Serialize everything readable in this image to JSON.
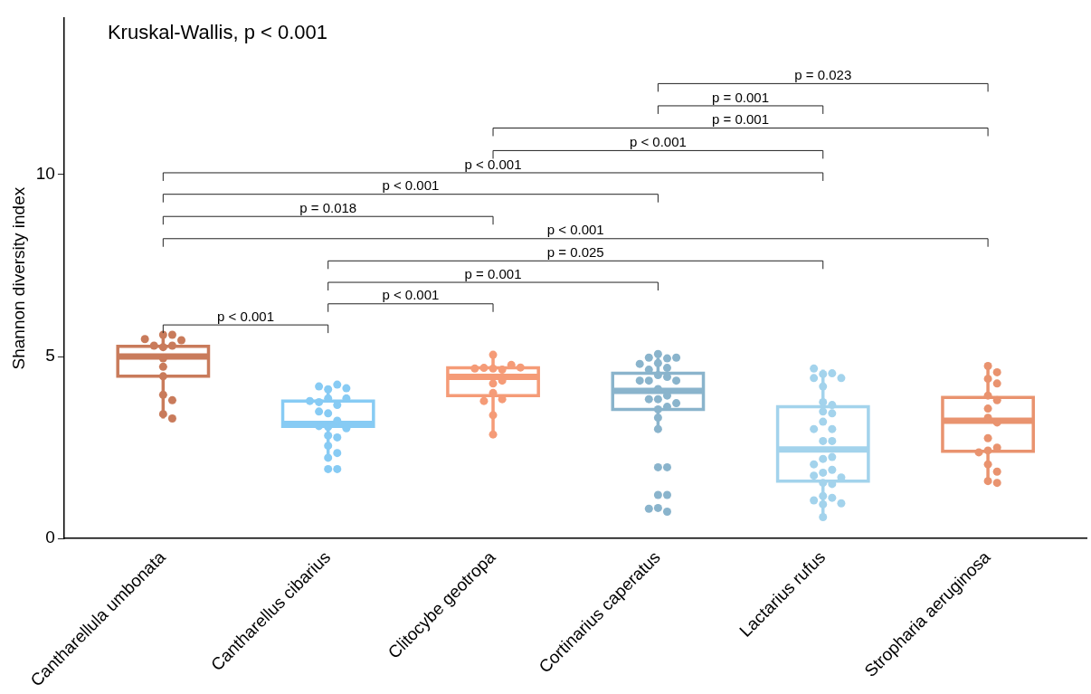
{
  "chart_data": {
    "type": "box",
    "ylabel": "Shannon diversity index",
    "categories": [
      "Cantharellula umbonata",
      "Cantharellus cibarius",
      "Clitocybe geotropa",
      "Cortinarius caperatus",
      "Lactarius rufus",
      "Stropharia aeruginosa"
    ],
    "colors": [
      "#c97b5b",
      "#87cbf4",
      "#f59b77",
      "#8ab4cc",
      "#a3d3ec",
      "#e9936f"
    ],
    "boxes": [
      {
        "low": 3.3,
        "q1": 4.46,
        "median": 5.0,
        "q3": 5.28,
        "high": 5.6
      },
      {
        "low": 2.27,
        "q1": 3.08,
        "median": 3.15,
        "q3": 3.78,
        "high": 4.13
      },
      {
        "low": 2.88,
        "q1": 3.93,
        "median": 4.44,
        "q3": 4.69,
        "high": 5.03
      },
      {
        "low": 3.04,
        "q1": 3.55,
        "median": 4.06,
        "q3": 4.54,
        "high": 4.97
      },
      {
        "low": 0.61,
        "q1": 1.58,
        "median": 2.45,
        "q3": 3.62,
        "high": 4.64
      },
      {
        "low": 1.53,
        "q1": 2.4,
        "median": 3.24,
        "q3": 3.88,
        "high": 4.72
      }
    ],
    "series": [
      {
        "type": "scatter",
        "color": "#c97b5b",
        "x": [
          "Cantharellula umbonata",
          "Cantharellula umbonata",
          "Cantharellula umbonata",
          "Cantharellula umbonata",
          "Cantharellula umbonata",
          "Cantharellula umbonata",
          "Cantharellula umbonata",
          "Cantharellula umbonata",
          "Cantharellula umbonata",
          "Cantharellula umbonata",
          "Cantharellula umbonata",
          "Cantharellula umbonata",
          "Cantharellula umbonata",
          "Cantharellula umbonata"
        ],
        "values": [
          5.6,
          5.6,
          5.26,
          5.3,
          5.3,
          5.45,
          5.48,
          4.95,
          4.72,
          4.46,
          3.95,
          3.8,
          3.42,
          3.3
        ]
      },
      {
        "type": "scatter",
        "color": "#87cbf4",
        "x": [
          "Cantharellus cibarius",
          "Cantharellus cibarius",
          "Cantharellus cibarius",
          "Cantharellus cibarius",
          "Cantharellus cibarius",
          "Cantharellus cibarius",
          "Cantharellus cibarius",
          "Cantharellus cibarius",
          "Cantharellus cibarius",
          "Cantharellus cibarius",
          "Cantharellus cibarius",
          "Cantharellus cibarius",
          "Cantharellus cibarius",
          "Cantharellus cibarius",
          "Cantharellus cibarius",
          "Cantharellus cibarius",
          "Cantharellus cibarius",
          "Cantharellus cibarius",
          "Cantharellus cibarius",
          "Cantharellus cibarius",
          "Cantharellus cibarius",
          "Cantharellus cibarius"
        ],
        "values": [
          4.1,
          4.23,
          4.18,
          4.13,
          3.85,
          3.67,
          3.75,
          3.85,
          3.78,
          3.44,
          3.49,
          3.24,
          3.07,
          3.09,
          3.03,
          2.83,
          2.78,
          2.55,
          2.35,
          2.22,
          1.91,
          1.91
        ]
      },
      {
        "type": "scatter",
        "color": "#f59b77",
        "x": [
          "Clitocybe geotropa",
          "Clitocybe geotropa",
          "Clitocybe geotropa",
          "Clitocybe geotropa",
          "Clitocybe geotropa",
          "Clitocybe geotropa",
          "Clitocybe geotropa",
          "Clitocybe geotropa",
          "Clitocybe geotropa",
          "Clitocybe geotropa",
          "Clitocybe geotropa",
          "Clitocybe geotropa",
          "Clitocybe geotropa",
          "Clitocybe geotropa"
        ],
        "values": [
          5.05,
          4.67,
          4.64,
          4.69,
          4.77,
          4.67,
          4.7,
          4.26,
          4.34,
          4.0,
          3.83,
          3.78,
          3.39,
          2.86
        ]
      },
      {
        "type": "scatter",
        "color": "#8ab4cc",
        "x": [
          "Cortinarius caperatus",
          "Cortinarius caperatus",
          "Cortinarius caperatus",
          "Cortinarius caperatus",
          "Cortinarius caperatus",
          "Cortinarius caperatus",
          "Cortinarius caperatus",
          "Cortinarius caperatus",
          "Cortinarius caperatus",
          "Cortinarius caperatus",
          "Cortinarius caperatus",
          "Cortinarius caperatus",
          "Cortinarius caperatus",
          "Cortinarius caperatus",
          "Cortinarius caperatus",
          "Cortinarius caperatus",
          "Cortinarius caperatus",
          "Cortinarius caperatus",
          "Cortinarius caperatus",
          "Cortinarius caperatus",
          "Cortinarius caperatus",
          "Cortinarius caperatus",
          "Cortinarius caperatus",
          "Cortinarius caperatus",
          "Cortinarius caperatus",
          "Cortinarius caperatus",
          "Cortinarius caperatus",
          "Cortinarius caperatus",
          "Cortinarius caperatus"
        ],
        "values": [
          5.07,
          4.95,
          4.97,
          4.97,
          4.82,
          4.8,
          4.69,
          4.49,
          4.44,
          4.64,
          4.34,
          4.34,
          4.34,
          4.11,
          3.93,
          3.83,
          3.83,
          3.72,
          3.62,
          3.55,
          3.32,
          3.01,
          1.96,
          1.96,
          1.2,
          1.2,
          0.84,
          0.74,
          0.82
        ]
      },
      {
        "type": "scatter",
        "color": "#a3d3ec",
        "x": [
          "Lactarius rufus",
          "Lactarius rufus",
          "Lactarius rufus",
          "Lactarius rufus",
          "Lactarius rufus",
          "Lactarius rufus",
          "Lactarius rufus",
          "Lactarius rufus",
          "Lactarius rufus",
          "Lactarius rufus",
          "Lactarius rufus",
          "Lactarius rufus",
          "Lactarius rufus",
          "Lactarius rufus",
          "Lactarius rufus",
          "Lactarius rufus",
          "Lactarius rufus",
          "Lactarius rufus",
          "Lactarius rufus",
          "Lactarius rufus",
          "Lactarius rufus",
          "Lactarius rufus",
          "Lactarius rufus",
          "Lactarius rufus",
          "Lactarius rufus",
          "Lactarius rufus",
          "Lactarius rufus",
          "Lactarius rufus",
          "Lactarius rufus",
          "Lactarius rufus"
        ],
        "values": [
          4.52,
          4.54,
          4.41,
          4.41,
          4.67,
          4.18,
          3.75,
          3.67,
          3.49,
          3.44,
          3.21,
          3.01,
          3.01,
          2.68,
          2.68,
          2.19,
          2.24,
          2.04,
          1.81,
          1.89,
          1.73,
          1.68,
          1.53,
          1.5,
          1.17,
          1.12,
          1.05,
          0.97,
          0.94,
          0.59
        ]
      },
      {
        "type": "scatter",
        "color": "#e9936f",
        "x": [
          "Stropharia aeruginosa",
          "Stropharia aeruginosa",
          "Stropharia aeruginosa",
          "Stropharia aeruginosa",
          "Stropharia aeruginosa",
          "Stropharia aeruginosa",
          "Stropharia aeruginosa",
          "Stropharia aeruginosa",
          "Stropharia aeruginosa",
          "Stropharia aeruginosa",
          "Stropharia aeruginosa",
          "Stropharia aeruginosa",
          "Stropharia aeruginosa",
          "Stropharia aeruginosa",
          "Stropharia aeruginosa",
          "Stropharia aeruginosa",
          "Stropharia aeruginosa"
        ],
        "values": [
          4.74,
          4.57,
          4.39,
          4.26,
          3.93,
          3.8,
          3.57,
          3.32,
          3.19,
          2.76,
          2.42,
          2.5,
          2.37,
          2.04,
          1.84,
          1.58,
          1.53
        ]
      }
    ],
    "ylim": [
      0,
      14.3
    ],
    "yticks": [
      0,
      5,
      10
    ],
    "grid": false,
    "legend": false,
    "annotations": [
      "Kruskal-Wallis, p < 0.001",
      "p = 0.023",
      "p = 0.001",
      "p = 0.001",
      "p < 0.001",
      "p < 0.001",
      "p < 0.001",
      "p = 0.018",
      "p < 0.001",
      "p = 0.025",
      "p = 0.001",
      "p < 0.001",
      "p < 0.001"
    ]
  }
}
